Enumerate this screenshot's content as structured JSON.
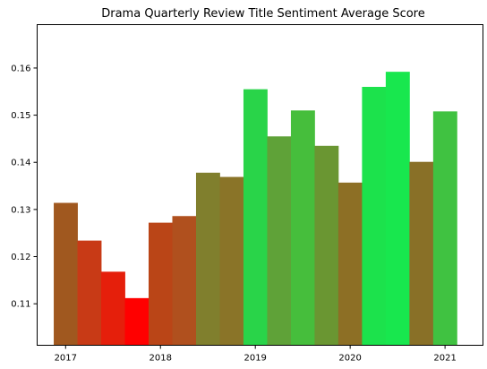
{
  "chart_data": {
    "type": "bar",
    "title": "Drama Quarterly Review Title Sentiment Average Score",
    "xlabel": "",
    "ylabel": "",
    "x_tick_labels": [
      "2017",
      "2018",
      "2019",
      "2020",
      "2021"
    ],
    "y_tick_labels": [
      "0.11",
      "0.12",
      "0.13",
      "0.14",
      "0.15",
      "0.16"
    ],
    "y_ticks": [
      0.11,
      0.12,
      0.13,
      0.14,
      0.15,
      0.16
    ],
    "x_tick_values": [
      2017,
      2018,
      2019,
      2020,
      2021
    ],
    "xlim": [
      2016.7,
      2021.4
    ],
    "ylim": [
      0.1012,
      0.1692
    ],
    "bar_width": 0.25,
    "grid": false,
    "legend": "none",
    "x": [
      2017.0,
      2017.25,
      2017.5,
      2017.75,
      2018.0,
      2018.25,
      2018.5,
      2018.75,
      2019.0,
      2019.25,
      2019.5,
      2019.75,
      2020.0,
      2020.25,
      2020.5,
      2020.75,
      2021.0
    ],
    "values": [
      0.1314,
      0.1234,
      0.1168,
      0.1112,
      0.1272,
      0.1286,
      0.1378,
      0.1369,
      0.1555,
      0.1455,
      0.151,
      0.1435,
      0.1357,
      0.156,
      0.1592,
      0.1401,
      0.1508
    ],
    "colors": [
      "#a0581f",
      "#c83a16",
      "#e51f0b",
      "#ff0000",
      "#ba4517",
      "#b0501e",
      "#807f2d",
      "#8a7428",
      "#29d449",
      "#5fa238",
      "#46be3c",
      "#6a9632",
      "#8d6f25",
      "#1ce24c",
      "#18e74e",
      "#897027",
      "#40c241"
    ]
  }
}
